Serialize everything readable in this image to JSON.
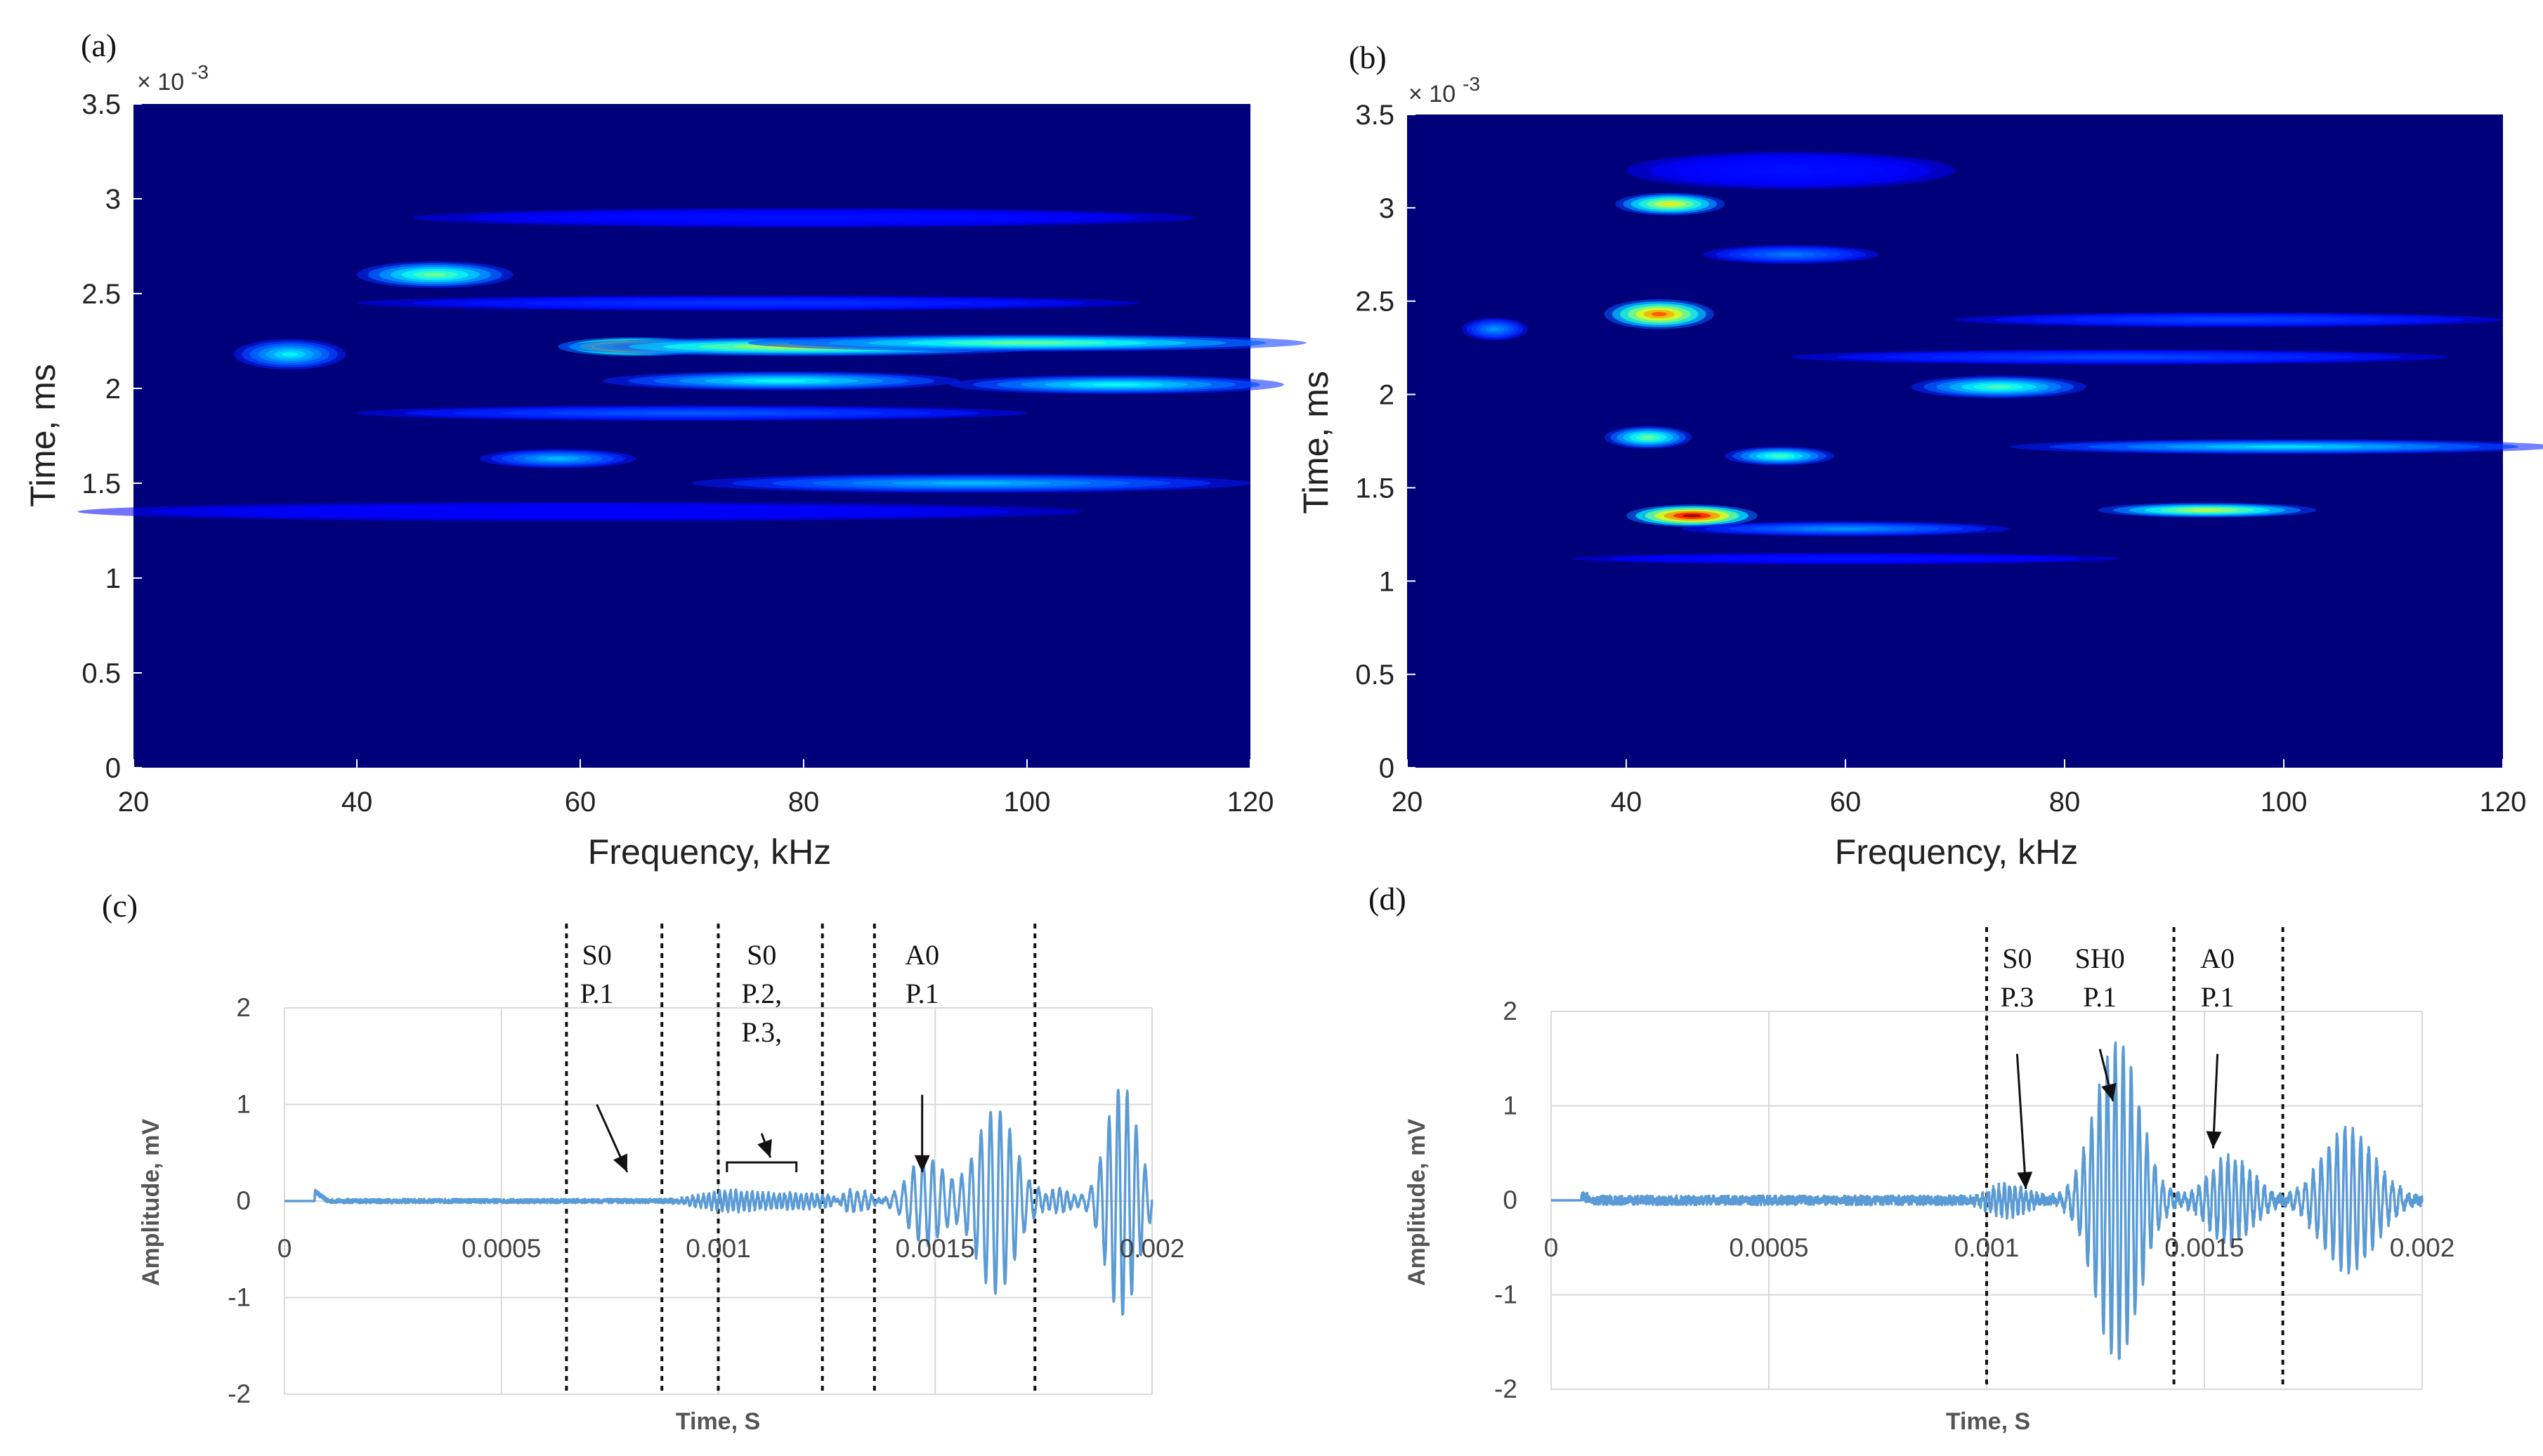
{
  "chart_data": [
    {
      "panel": "(a)",
      "type": "heatmap",
      "xlabel": "Frequency, kHz",
      "ylabel": "Time, ms",
      "y_multiplier": "× 10^-3",
      "xlim": [
        20,
        120
      ],
      "ylim": [
        0,
        3.5
      ],
      "xticks": [
        "20",
        "40",
        "60",
        "80",
        "100",
        "120"
      ],
      "yticks": [
        "0",
        "0.5",
        "1",
        "1.5",
        "2",
        "2.5",
        "3",
        "3.5"
      ],
      "blobs": [
        {
          "f": 65,
          "t": 2.22,
          "df": 7,
          "dt": 0.05,
          "v": 1.0
        },
        {
          "f": 80,
          "t": 2.22,
          "df": 22,
          "dt": 0.05,
          "v": 0.6
        },
        {
          "f": 100,
          "t": 2.24,
          "df": 25,
          "dt": 0.045,
          "v": 0.5
        },
        {
          "f": 47,
          "t": 2.6,
          "df": 7,
          "dt": 0.07,
          "v": 0.5
        },
        {
          "f": 34,
          "t": 2.18,
          "df": 5,
          "dt": 0.08,
          "v": 0.38
        },
        {
          "f": 78,
          "t": 2.04,
          "df": 16,
          "dt": 0.05,
          "v": 0.4
        },
        {
          "f": 108,
          "t": 2.02,
          "df": 15,
          "dt": 0.05,
          "v": 0.4
        },
        {
          "f": 58,
          "t": 1.63,
          "df": 7,
          "dt": 0.05,
          "v": 0.32
        },
        {
          "f": 95,
          "t": 1.5,
          "df": 25,
          "dt": 0.05,
          "v": 0.32
        },
        {
          "f": 70,
          "t": 1.87,
          "df": 30,
          "dt": 0.04,
          "v": 0.22
        },
        {
          "f": 80,
          "t": 2.9,
          "df": 35,
          "dt": 0.05,
          "v": 0.14
        },
        {
          "f": 75,
          "t": 2.45,
          "df": 35,
          "dt": 0.04,
          "v": 0.18
        },
        {
          "f": 60,
          "t": 1.35,
          "df": 45,
          "dt": 0.05,
          "v": 0.12
        }
      ]
    },
    {
      "panel": "(b)",
      "type": "heatmap",
      "xlabel": "Frequency, kHz",
      "ylabel": "Time, ms",
      "y_multiplier": "× 10^-3",
      "xlim": [
        20,
        120
      ],
      "ylim": [
        0,
        3.5
      ],
      "xticks": [
        "20",
        "40",
        "60",
        "80",
        "100",
        "120"
      ],
      "yticks": [
        "0",
        "0.5",
        "1",
        "1.5",
        "2",
        "2.5",
        "3",
        "3.5"
      ],
      "blobs": [
        {
          "f": 46,
          "t": 1.35,
          "df": 6,
          "dt": 0.06,
          "v": 1.0
        },
        {
          "f": 43,
          "t": 2.43,
          "df": 5,
          "dt": 0.08,
          "v": 0.82
        },
        {
          "f": 44,
          "t": 3.02,
          "df": 5,
          "dt": 0.06,
          "v": 0.65
        },
        {
          "f": 93,
          "t": 1.38,
          "df": 10,
          "dt": 0.04,
          "v": 0.6
        },
        {
          "f": 42,
          "t": 1.77,
          "df": 4,
          "dt": 0.06,
          "v": 0.5
        },
        {
          "f": 54,
          "t": 1.67,
          "df": 5,
          "dt": 0.05,
          "v": 0.46
        },
        {
          "f": 74,
          "t": 2.04,
          "df": 8,
          "dt": 0.06,
          "v": 0.46
        },
        {
          "f": 28,
          "t": 2.35,
          "df": 3,
          "dt": 0.06,
          "v": 0.28
        },
        {
          "f": 100,
          "t": 1.72,
          "df": 25,
          "dt": 0.04,
          "v": 0.36
        },
        {
          "f": 95,
          "t": 2.4,
          "df": 25,
          "dt": 0.04,
          "v": 0.2
        },
        {
          "f": 85,
          "t": 2.2,
          "df": 30,
          "dt": 0.04,
          "v": 0.2
        },
        {
          "f": 60,
          "t": 1.28,
          "df": 15,
          "dt": 0.04,
          "v": 0.28
        },
        {
          "f": 55,
          "t": 2.75,
          "df": 8,
          "dt": 0.05,
          "v": 0.25
        },
        {
          "f": 55,
          "t": 3.2,
          "df": 15,
          "dt": 0.1,
          "v": 0.14
        },
        {
          "f": 60,
          "t": 1.12,
          "df": 25,
          "dt": 0.03,
          "v": 0.14
        }
      ]
    },
    {
      "panel": "(c)",
      "type": "line",
      "xlabel": "Time, S",
      "ylabel": "Amplitude, mV",
      "xlim": [
        0,
        0.002
      ],
      "ylim": [
        -2,
        2
      ],
      "xticks": [
        "0",
        "0.0005",
        "0.001",
        "0.0015",
        "0.002"
      ],
      "yticks": [
        "2",
        "1",
        "0",
        "-1",
        "-2"
      ],
      "dashed_lines_x": [
        0.00065,
        0.00087,
        0.001,
        0.00124,
        0.00136,
        0.00173
      ],
      "annotations": [
        {
          "lines": [
            "S0",
            "P.1"
          ],
          "text_x": 0.00072,
          "arrow_from_y": 1.0,
          "arrow_to": [
            0.00079,
            0.3
          ]
        },
        {
          "lines": [
            "S0",
            "P.2,",
            "P.3,"
          ],
          "text_x": 0.0011,
          "arrow_from_y": 0.7,
          "arrow_to": [
            0.00112,
            0.45
          ]
        },
        {
          "lines": [
            "A0",
            "P.1"
          ],
          "text_x": 0.00147,
          "arrow_from_y": 1.1,
          "arrow_to": [
            0.00147,
            0.3
          ]
        }
      ],
      "signal": {
        "noise": 0.022,
        "t_start": 7e-05,
        "spike_t": 7e-05,
        "spike_amp": 0.1,
        "packets": [
          {
            "c": 0.00102,
            "w": 6e-05,
            "A": 0.09,
            "f": 80000
          },
          {
            "c": 0.00118,
            "w": 8e-05,
            "A": 0.07,
            "f": 80000
          },
          {
            "c": 0.00132,
            "w": 3e-05,
            "A": 0.1,
            "f": 60000
          },
          {
            "c": 0.00148,
            "w": 4e-05,
            "A": 0.45,
            "f": 45000
          },
          {
            "c": 0.00164,
            "w": 4.5e-05,
            "A": 0.95,
            "f": 45000
          },
          {
            "c": 0.00178,
            "w": 3e-05,
            "A": 0.12,
            "f": 60000
          },
          {
            "c": 0.00193,
            "w": 3.5e-05,
            "A": 1.2,
            "f": 48000
          }
        ]
      }
    },
    {
      "panel": "(d)",
      "type": "line",
      "xlabel": "Time, S",
      "ylabel": "Amplitude, mV",
      "xlim": [
        0,
        0.002
      ],
      "ylim": [
        -2,
        2
      ],
      "xticks": [
        "0",
        "0.0005",
        "0.001",
        "0.0015",
        "0.002"
      ],
      "yticks": [
        "2",
        "1",
        "0",
        "-1",
        "-2"
      ],
      "dashed_lines_x": [
        0.001,
        0.00143,
        0.00168
      ],
      "annotations": [
        {
          "lines": [
            "S0",
            "P.3"
          ],
          "text_x": 0.00107,
          "arrow_from_y": 1.55,
          "arrow_to": [
            0.00109,
            0.12
          ]
        },
        {
          "lines": [
            "SH0",
            "P.1"
          ],
          "text_x": 0.00126,
          "arrow_from_y": 1.6,
          "arrow_to": [
            0.00129,
            1.05
          ]
        },
        {
          "lines": [
            "A0",
            "P.1"
          ],
          "text_x": 0.00153,
          "arrow_from_y": 1.55,
          "arrow_to": [
            0.00152,
            0.55
          ]
        }
      ],
      "signal": {
        "noise": 0.05,
        "t_start": 7e-05,
        "spike_t": 7e-05,
        "spike_amp": 0.05,
        "packets": [
          {
            "c": 0.00105,
            "w": 4e-05,
            "A": 0.16,
            "f": 80000
          },
          {
            "c": 0.0013,
            "w": 5e-05,
            "A": 1.7,
            "f": 55000
          },
          {
            "c": 0.00156,
            "w": 5e-05,
            "A": 0.45,
            "f": 60000
          },
          {
            "c": 0.00183,
            "w": 6e-05,
            "A": 0.75,
            "f": 55000
          }
        ]
      }
    }
  ]
}
